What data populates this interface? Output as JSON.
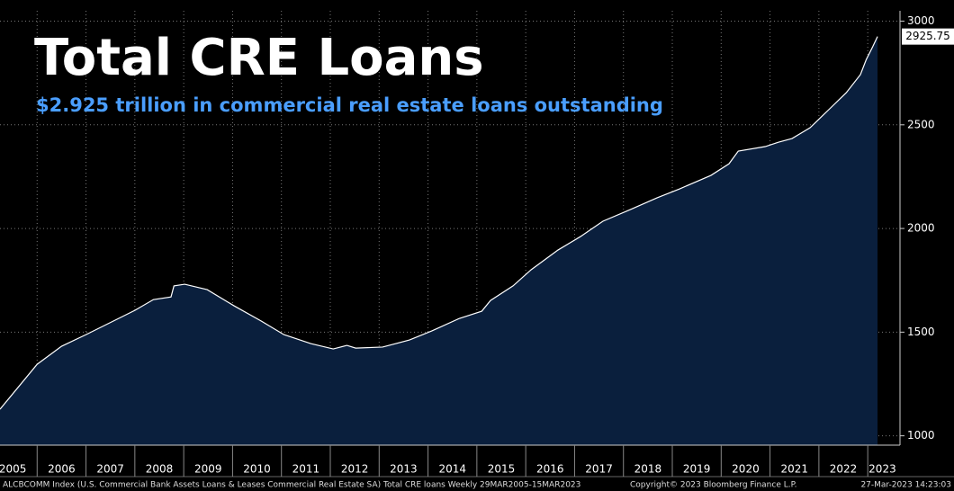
{
  "chart_data": {
    "type": "area",
    "title": "Total CRE Loans",
    "subtitle": "$2.925 trillion in commercial real estate loans outstanding",
    "footer": [
      "ALCBCOMM Index (U.S. Commercial Bank Assets Loans & Leases Commercial Real Estate SA) Total CRE loans  Weekly 29MAR2005-15MAR2023",
      "Copyright© 2023 Bloomberg Finance L.P.",
      "27-Mar-2023 14:23:03"
    ],
    "x": [
      2005.24,
      2006.0,
      2006.5,
      2007.0,
      2008.0,
      2008.38,
      2008.74,
      2008.8,
      2009.02,
      2009.48,
      2010.03,
      2010.59,
      2011.05,
      2011.6,
      2012.06,
      2012.34,
      2012.52,
      2013.07,
      2013.62,
      2014.08,
      2014.64,
      2015.1,
      2015.28,
      2015.74,
      2016.11,
      2016.66,
      2017.12,
      2017.58,
      2018.14,
      2018.69,
      2019.15,
      2019.79,
      2020.16,
      2020.35,
      2020.9,
      2021.17,
      2021.45,
      2021.82,
      2022.18,
      2022.56,
      2022.85,
      2022.97,
      2023.1,
      2023.2
    ],
    "series": [
      {
        "line_color": "#ffffff",
        "fill_color": "#0a1f3d",
        "values": [
          1128,
          1345,
          1432,
          1488,
          1605,
          1657,
          1670,
          1723,
          1731,
          1705,
          1627,
          1553,
          1488,
          1445,
          1419,
          1436,
          1423,
          1428,
          1462,
          1506,
          1566,
          1601,
          1653,
          1723,
          1801,
          1896,
          1961,
          2035,
          2091,
          2148,
          2191,
          2256,
          2312,
          2373,
          2395,
          2416,
          2434,
          2486,
          2568,
          2655,
          2742,
          2815,
          2876,
          2925.75
        ]
      }
    ],
    "xlim": [
      2005.24,
      2023.66
    ],
    "ylim": [
      955,
      3050
    ],
    "yticks": [
      1000,
      1500,
      2000,
      2500,
      3000
    ],
    "xgrid": [
      2006,
      2007,
      2008,
      2009,
      2010,
      2011,
      2012,
      2013,
      2014,
      2015,
      2016,
      2017,
      2018,
      2019,
      2020,
      2021,
      2022,
      2023
    ],
    "xticks": [
      {
        "value": 2005.5,
        "label": "2005"
      },
      {
        "value": 2006.5,
        "label": "2006"
      },
      {
        "value": 2007.5,
        "label": "2007"
      },
      {
        "value": 2008.5,
        "label": "2008"
      },
      {
        "value": 2009.5,
        "label": "2009"
      },
      {
        "value": 2010.5,
        "label": "2010"
      },
      {
        "value": 2011.5,
        "label": "2011"
      },
      {
        "value": 2012.5,
        "label": "2012"
      },
      {
        "value": 2013.5,
        "label": "2013"
      },
      {
        "value": 2014.5,
        "label": "2014"
      },
      {
        "value": 2015.5,
        "label": "2015"
      },
      {
        "value": 2016.5,
        "label": "2016"
      },
      {
        "value": 2017.5,
        "label": "2017"
      },
      {
        "value": 2018.5,
        "label": "2018"
      },
      {
        "value": 2019.5,
        "label": "2019"
      },
      {
        "value": 2020.5,
        "label": "2020"
      },
      {
        "value": 2021.5,
        "label": "2021"
      },
      {
        "value": 2022.5,
        "label": "2022"
      },
      {
        "value": 2023.3,
        "label": "2023"
      }
    ],
    "grid": true
  }
}
